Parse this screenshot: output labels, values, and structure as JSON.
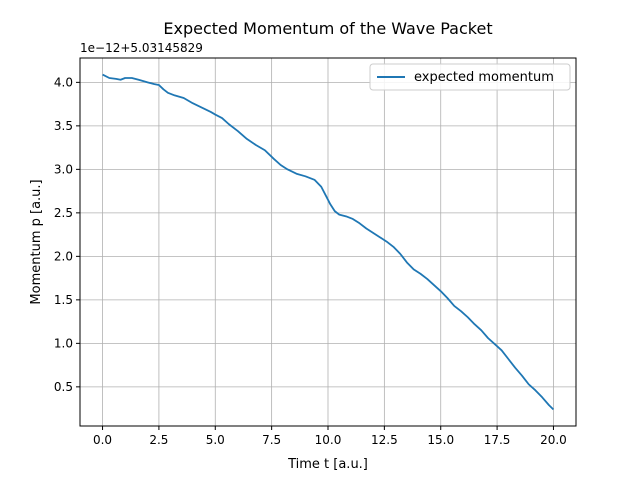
{
  "chart_data": {
    "type": "line",
    "title": "Expected Momentum of the Wave Packet",
    "xlabel": "Time t [a.u.]",
    "ylabel": "Momentum p [a.u.]",
    "offset_text": "1e−12+5.03145829",
    "xlim": [
      -1.0,
      21.0
    ],
    "ylim": [
      0.05,
      4.28
    ],
    "xticks": [
      0,
      2.5,
      5,
      7.5,
      10,
      12.5,
      15,
      17.5,
      20
    ],
    "xtick_labels": [
      "0.0",
      "2.5",
      "5.0",
      "7.5",
      "10.0",
      "12.5",
      "15.0",
      "17.5",
      "20.0"
    ],
    "yticks": [
      0.5,
      1.0,
      1.5,
      2.0,
      2.5,
      3.0,
      3.5,
      4.0
    ],
    "ytick_labels": [
      "0.5",
      "1.0",
      "1.5",
      "2.0",
      "2.5",
      "3.0",
      "3.5",
      "4.0"
    ],
    "grid": true,
    "legend_position": "top-right",
    "series": [
      {
        "name": "expected momentum",
        "color": "#1f77b4",
        "x": [
          0.0,
          0.3,
          0.6,
          0.8,
          1.0,
          1.3,
          1.6,
          2.0,
          2.3,
          2.5,
          2.7,
          2.9,
          3.2,
          3.6,
          4.0,
          4.4,
          4.8,
          5.0,
          5.3,
          5.6,
          6.0,
          6.4,
          6.8,
          7.2,
          7.6,
          7.9,
          8.2,
          8.6,
          9.0,
          9.4,
          9.7,
          9.9,
          10.1,
          10.3,
          10.5,
          10.8,
          11.1,
          11.4,
          11.7,
          12.0,
          12.3,
          12.6,
          12.9,
          13.2,
          13.5,
          13.8,
          14.1,
          14.4,
          14.7,
          15.0,
          15.3,
          15.6,
          15.9,
          16.2,
          16.5,
          16.8,
          17.1,
          17.4,
          17.7,
          18.0,
          18.3,
          18.6,
          18.9,
          19.2,
          19.5,
          19.8,
          20.0
        ],
        "y": [
          4.09,
          4.05,
          4.04,
          4.03,
          4.05,
          4.05,
          4.03,
          4.0,
          3.98,
          3.97,
          3.92,
          3.88,
          3.85,
          3.82,
          3.76,
          3.71,
          3.66,
          3.63,
          3.59,
          3.52,
          3.44,
          3.35,
          3.28,
          3.22,
          3.12,
          3.05,
          3.0,
          2.95,
          2.92,
          2.88,
          2.8,
          2.7,
          2.6,
          2.52,
          2.48,
          2.46,
          2.43,
          2.38,
          2.32,
          2.27,
          2.22,
          2.17,
          2.11,
          2.03,
          1.93,
          1.85,
          1.8,
          1.74,
          1.67,
          1.6,
          1.52,
          1.43,
          1.37,
          1.3,
          1.22,
          1.15,
          1.06,
          0.99,
          0.92,
          0.82,
          0.72,
          0.63,
          0.53,
          0.46,
          0.38,
          0.29,
          0.24
        ]
      }
    ]
  }
}
